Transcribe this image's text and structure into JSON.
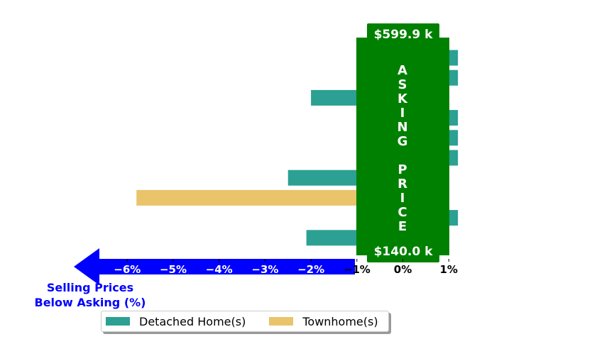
{
  "chart_data": {
    "type": "bar",
    "orientation": "horizontal",
    "xlim": [
      -6.6,
      1.2
    ],
    "x_ticks": [
      "−6%",
      "−5%",
      "−4%",
      "−3%",
      "−2%",
      "−1%",
      "0%",
      "1%"
    ],
    "x_tick_values": [
      -6,
      -5,
      -4,
      -3,
      -2,
      -1,
      0,
      1
    ],
    "series": [
      {
        "name": "Detached Home(s)",
        "color": "#2ca093"
      },
      {
        "name": "Townhome(s)",
        "color": "#e9c46a"
      }
    ],
    "bars": [
      {
        "series": 0,
        "value": 1.2
      },
      {
        "series": 0,
        "value": 1.2
      },
      {
        "series": 0,
        "value": -2.0
      },
      {
        "series": 0,
        "value": 1.2
      },
      {
        "series": 0,
        "value": 1.2
      },
      {
        "series": 0,
        "value": 1.2
      },
      {
        "series": 0,
        "value": -2.5
      },
      {
        "series": 1,
        "value": -5.8
      },
      {
        "series": 0,
        "value": 1.2
      },
      {
        "series": 0,
        "value": -2.1
      }
    ],
    "panel": {
      "color": "#008000",
      "top_label": "$599.9 k",
      "bottom_label": "$140.0 k",
      "letters": [
        "A",
        "S",
        "K",
        "I",
        "N",
        "G",
        "",
        "P",
        "R",
        "I",
        "C",
        "E"
      ]
    },
    "arrow": {
      "color": "#0000ff",
      "label_line1": "Selling Prices",
      "label_line2": "Below Asking (%)"
    },
    "legend_placement": "bottom-center"
  }
}
